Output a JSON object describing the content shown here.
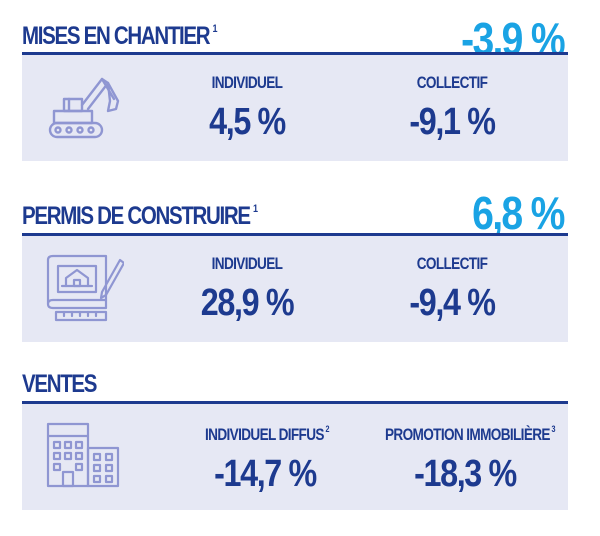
{
  "mises": {
    "title": "MISES EN CHANTIER",
    "note": "1",
    "total": "-3,9 %",
    "icon": "excavator-icon",
    "col1": {
      "label": "INDIVIDUEL",
      "value": "4,5 %"
    },
    "col2": {
      "label": "COLLECTIF",
      "value": "-9,1 %"
    }
  },
  "permis": {
    "title": "PERMIS DE CONSTRUIRE",
    "note": "1",
    "total": "6,8 %",
    "icon": "blueprint-icon",
    "col1": {
      "label": "INDIVIDUEL",
      "value": "28,9 %"
    },
    "col2": {
      "label": "COLLECTIF",
      "value": "-9,4 %"
    }
  },
  "ventes": {
    "title": "VENTES",
    "icon": "buildings-icon",
    "col1": {
      "label": "INDIVIDUEL DIFFUS",
      "note": "2",
      "value": "-14,7 %"
    },
    "col2": {
      "label": "PROMOTION IMMOBILIÈRE",
      "note": "3",
      "value": "-18,3 %"
    }
  },
  "colors": {
    "navy": "#1d3a8f",
    "cyan": "#1aa3e4",
    "panel": "#e6e8f4",
    "icon": "#8f96d2"
  }
}
